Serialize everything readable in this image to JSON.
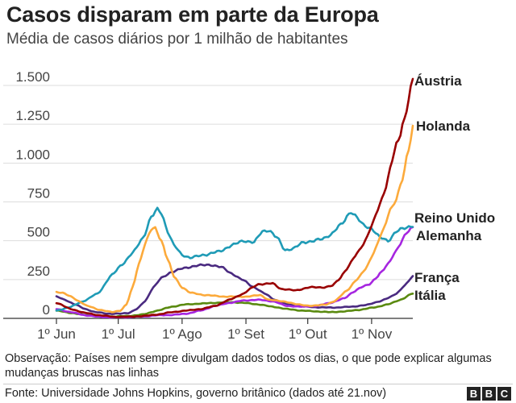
{
  "header": {
    "title": "Casos disparam em parte da Europa",
    "subtitle": "Média de casos diários por 1 milhão de habitantes"
  },
  "footer": {
    "note": "Observação: Países nem sempre divulgam dados todos os dias, o que pode explicar algumas mudanças bruscas nas linhas",
    "source": "Fonte: Universidade Johns Hopkins, governo britânico (dados até 21.nov)",
    "logo_letters": [
      "B",
      "B",
      "C"
    ]
  },
  "chart_data": {
    "type": "line",
    "title": "Casos disparam em parte da Europa",
    "subtitle": "Média de casos diários por 1 milhão de habitantes",
    "x_axis": {
      "start": "2021-06-01",
      "end": "2021-11-21",
      "ticks": [
        {
          "date": "2021-06-01",
          "label": "1º Jun"
        },
        {
          "date": "2021-07-01",
          "label": "1º Jul"
        },
        {
          "date": "2021-08-01",
          "label": "1º Ago"
        },
        {
          "date": "2021-09-01",
          "label": "1º Set"
        },
        {
          "date": "2021-10-01",
          "label": "1º Out"
        },
        {
          "date": "2021-11-01",
          "label": "1º Nov"
        }
      ]
    },
    "y_axis": {
      "min": 0,
      "max": 1500,
      "ticks": [
        {
          "value": 0,
          "label": "0"
        },
        {
          "value": 250,
          "label": "250"
        },
        {
          "value": 500,
          "label": "500"
        },
        {
          "value": 750,
          "label": "750"
        },
        {
          "value": 1000,
          "label": "1.000"
        },
        {
          "value": 1250,
          "label": "1.250"
        },
        {
          "value": 1500,
          "label": "1.500"
        }
      ]
    },
    "grid": "horizontal",
    "legend": "direct-labels-right",
    "series": [
      {
        "name": "Áustria",
        "color": "#990000",
        "points": [
          [
            "2021-06-01",
            100
          ],
          [
            "2021-06-08",
            60
          ],
          [
            "2021-06-15",
            35
          ],
          [
            "2021-06-22",
            20
          ],
          [
            "2021-06-29",
            10
          ],
          [
            "2021-07-06",
            10
          ],
          [
            "2021-07-13",
            15
          ],
          [
            "2021-07-20",
            25
          ],
          [
            "2021-07-27",
            40
          ],
          [
            "2021-08-03",
            50
          ],
          [
            "2021-08-10",
            60
          ],
          [
            "2021-08-17",
            80
          ],
          [
            "2021-08-24",
            120
          ],
          [
            "2021-08-31",
            160
          ],
          [
            "2021-09-03",
            190
          ],
          [
            "2021-09-07",
            220
          ],
          [
            "2021-09-14",
            225
          ],
          [
            "2021-09-18",
            190
          ],
          [
            "2021-09-25",
            180
          ],
          [
            "2021-10-02",
            200
          ],
          [
            "2021-10-09",
            200
          ],
          [
            "2021-10-13",
            210
          ],
          [
            "2021-10-16",
            250
          ],
          [
            "2021-10-20",
            320
          ],
          [
            "2021-10-24",
            400
          ],
          [
            "2021-10-28",
            480
          ],
          [
            "2021-11-01",
            590
          ],
          [
            "2021-11-04",
            700
          ],
          [
            "2021-11-08",
            850
          ],
          [
            "2021-11-11",
            1020
          ],
          [
            "2021-11-14",
            1150
          ],
          [
            "2021-11-17",
            1290
          ],
          [
            "2021-11-19",
            1420
          ],
          [
            "2021-11-21",
            1530
          ]
        ]
      },
      {
        "name": "Holanda",
        "color": "#fcaa3b",
        "points": [
          [
            "2021-06-01",
            170
          ],
          [
            "2021-06-04",
            165
          ],
          [
            "2021-06-08",
            140
          ],
          [
            "2021-06-12",
            110
          ],
          [
            "2021-06-16",
            80
          ],
          [
            "2021-06-22",
            55
          ],
          [
            "2021-06-28",
            40
          ],
          [
            "2021-07-02",
            50
          ],
          [
            "2021-07-05",
            90
          ],
          [
            "2021-07-08",
            200
          ],
          [
            "2021-07-11",
            350
          ],
          [
            "2021-07-14",
            480
          ],
          [
            "2021-07-17",
            570
          ],
          [
            "2021-07-19",
            580
          ],
          [
            "2021-07-22",
            500
          ],
          [
            "2021-07-25",
            380
          ],
          [
            "2021-07-28",
            270
          ],
          [
            "2021-08-01",
            200
          ],
          [
            "2021-08-05",
            165
          ],
          [
            "2021-08-12",
            150
          ],
          [
            "2021-08-22",
            140
          ],
          [
            "2021-09-01",
            140
          ],
          [
            "2021-09-08",
            150
          ],
          [
            "2021-09-12",
            120
          ],
          [
            "2021-09-19",
            110
          ],
          [
            "2021-09-26",
            90
          ],
          [
            "2021-10-03",
            80
          ],
          [
            "2021-10-10",
            90
          ],
          [
            "2021-10-14",
            110
          ],
          [
            "2021-10-20",
            180
          ],
          [
            "2021-10-25",
            250
          ],
          [
            "2021-10-29",
            320
          ],
          [
            "2021-11-02",
            420
          ],
          [
            "2021-11-06",
            550
          ],
          [
            "2021-11-10",
            700
          ],
          [
            "2021-11-13",
            760
          ],
          [
            "2021-11-16",
            900
          ],
          [
            "2021-11-19",
            1100
          ],
          [
            "2021-11-21",
            1230
          ]
        ]
      },
      {
        "name": "Reino Unido",
        "color": "#1f9bb6",
        "points": [
          [
            "2021-06-01",
            50
          ],
          [
            "2021-06-07",
            70
          ],
          [
            "2021-06-14",
            110
          ],
          [
            "2021-06-21",
            160
          ],
          [
            "2021-06-28",
            280
          ],
          [
            "2021-07-03",
            350
          ],
          [
            "2021-07-08",
            420
          ],
          [
            "2021-07-13",
            520
          ],
          [
            "2021-07-17",
            650
          ],
          [
            "2021-07-20",
            700
          ],
          [
            "2021-07-22",
            680
          ],
          [
            "2021-07-25",
            560
          ],
          [
            "2021-07-28",
            470
          ],
          [
            "2021-08-01",
            410
          ],
          [
            "2021-08-05",
            390
          ],
          [
            "2021-08-12",
            410
          ],
          [
            "2021-08-19",
            430
          ],
          [
            "2021-08-25",
            470
          ],
          [
            "2021-08-31",
            500
          ],
          [
            "2021-09-05",
            490
          ],
          [
            "2021-09-09",
            560
          ],
          [
            "2021-09-12",
            570
          ],
          [
            "2021-09-16",
            520
          ],
          [
            "2021-09-20",
            440
          ],
          [
            "2021-09-24",
            450
          ],
          [
            "2021-09-29",
            490
          ],
          [
            "2021-10-04",
            500
          ],
          [
            "2021-10-08",
            510
          ],
          [
            "2021-10-12",
            540
          ],
          [
            "2021-10-17",
            600
          ],
          [
            "2021-10-22",
            690
          ],
          [
            "2021-10-24",
            660
          ],
          [
            "2021-10-28",
            600
          ],
          [
            "2021-11-01",
            580
          ],
          [
            "2021-11-05",
            520
          ],
          [
            "2021-11-09",
            500
          ],
          [
            "2021-11-13",
            560
          ],
          [
            "2021-11-17",
            580
          ],
          [
            "2021-11-21",
            600
          ]
        ]
      },
      {
        "name": "Alemanha",
        "color": "#a626e0",
        "points": [
          [
            "2021-06-01",
            60
          ],
          [
            "2021-06-08",
            40
          ],
          [
            "2021-06-15",
            20
          ],
          [
            "2021-06-22",
            10
          ],
          [
            "2021-06-29",
            6
          ],
          [
            "2021-07-06",
            8
          ],
          [
            "2021-07-13",
            12
          ],
          [
            "2021-07-20",
            20
          ],
          [
            "2021-07-27",
            22
          ],
          [
            "2021-08-03",
            30
          ],
          [
            "2021-08-10",
            50
          ],
          [
            "2021-08-17",
            80
          ],
          [
            "2021-08-24",
            100
          ],
          [
            "2021-08-31",
            115
          ],
          [
            "2021-09-07",
            120
          ],
          [
            "2021-09-14",
            110
          ],
          [
            "2021-09-21",
            80
          ],
          [
            "2021-09-28",
            75
          ],
          [
            "2021-10-05",
            80
          ],
          [
            "2021-10-12",
            100
          ],
          [
            "2021-10-19",
            130
          ],
          [
            "2021-10-23",
            170
          ],
          [
            "2021-10-27",
            200
          ],
          [
            "2021-10-31",
            220
          ],
          [
            "2021-11-03",
            260
          ],
          [
            "2021-11-06",
            300
          ],
          [
            "2021-11-09",
            350
          ],
          [
            "2021-11-12",
            420
          ],
          [
            "2021-11-15",
            480
          ],
          [
            "2021-11-18",
            550
          ],
          [
            "2021-11-21",
            590
          ]
        ]
      },
      {
        "name": "França",
        "color": "#4a2a80",
        "points": [
          [
            "2021-06-01",
            140
          ],
          [
            "2021-06-05",
            120
          ],
          [
            "2021-06-10",
            90
          ],
          [
            "2021-06-15",
            60
          ],
          [
            "2021-06-20",
            40
          ],
          [
            "2021-06-26",
            30
          ],
          [
            "2021-07-02",
            30
          ],
          [
            "2021-07-06",
            35
          ],
          [
            "2021-07-10",
            60
          ],
          [
            "2021-07-14",
            110
          ],
          [
            "2021-07-18",
            200
          ],
          [
            "2021-07-22",
            260
          ],
          [
            "2021-07-27",
            300
          ],
          [
            "2021-08-01",
            320
          ],
          [
            "2021-08-08",
            340
          ],
          [
            "2021-08-15",
            345
          ],
          [
            "2021-08-20",
            330
          ],
          [
            "2021-08-25",
            290
          ],
          [
            "2021-08-30",
            250
          ],
          [
            "2021-09-05",
            200
          ],
          [
            "2021-09-10",
            160
          ],
          [
            "2021-09-15",
            120
          ],
          [
            "2021-09-20",
            95
          ],
          [
            "2021-09-25",
            80
          ],
          [
            "2021-10-01",
            75
          ],
          [
            "2021-10-08",
            70
          ],
          [
            "2021-10-15",
            70
          ],
          [
            "2021-10-22",
            75
          ],
          [
            "2021-10-29",
            85
          ],
          [
            "2021-11-05",
            110
          ],
          [
            "2021-11-09",
            130
          ],
          [
            "2021-11-13",
            160
          ],
          [
            "2021-11-17",
            210
          ],
          [
            "2021-11-21",
            270
          ]
        ]
      },
      {
        "name": "Itália",
        "color": "#5a8a10",
        "points": [
          [
            "2021-06-01",
            50
          ],
          [
            "2021-06-08",
            35
          ],
          [
            "2021-06-15",
            22
          ],
          [
            "2021-06-22",
            15
          ],
          [
            "2021-06-29",
            12
          ],
          [
            "2021-07-06",
            15
          ],
          [
            "2021-07-13",
            25
          ],
          [
            "2021-07-20",
            50
          ],
          [
            "2021-07-27",
            75
          ],
          [
            "2021-08-03",
            90
          ],
          [
            "2021-08-10",
            95
          ],
          [
            "2021-08-17",
            100
          ],
          [
            "2021-08-24",
            105
          ],
          [
            "2021-08-31",
            100
          ],
          [
            "2021-09-07",
            90
          ],
          [
            "2021-09-14",
            75
          ],
          [
            "2021-09-21",
            60
          ],
          [
            "2021-09-28",
            50
          ],
          [
            "2021-10-05",
            45
          ],
          [
            "2021-10-12",
            40
          ],
          [
            "2021-10-19",
            45
          ],
          [
            "2021-10-26",
            55
          ],
          [
            "2021-11-02",
            70
          ],
          [
            "2021-11-09",
            90
          ],
          [
            "2021-11-15",
            120
          ],
          [
            "2021-11-21",
            160
          ]
        ]
      }
    ],
    "direct_labels": [
      {
        "series": "Áustria",
        "text": "Áustria"
      },
      {
        "series": "Holanda",
        "text": "Holanda"
      },
      {
        "series": "Reino Unido",
        "text": "Reino Unido"
      },
      {
        "series": "Alemanha",
        "text": "Alemanha"
      },
      {
        "series": "França",
        "text": "França"
      },
      {
        "series": "Itália",
        "text": "Itália"
      }
    ]
  }
}
